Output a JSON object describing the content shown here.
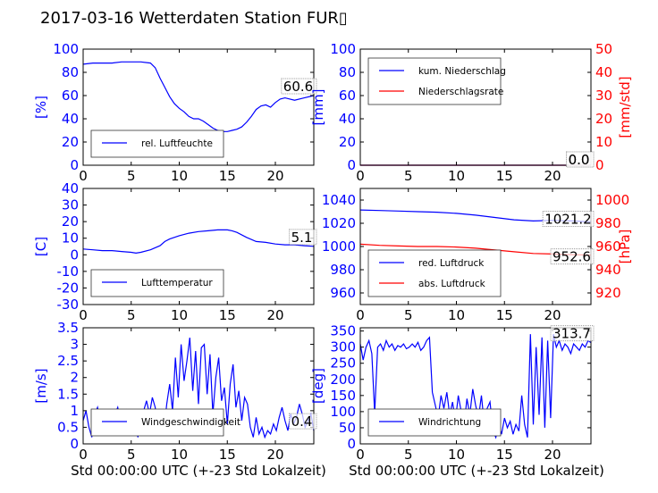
{
  "figure": {
    "title": "2017-03-16 Wetterdaten Station FUR",
    "title_glyph": "▯",
    "xlabel": "Std 00:00:00 UTC (+-23 Std Lokalzeit)"
  },
  "colors": {
    "primary": "#0000ff",
    "secondary": "#ff0000",
    "axis": "#000000"
  },
  "chart_data": [
    {
      "type": "line",
      "panel": "humidity",
      "ylabel": "[%]",
      "ylim": [
        0,
        100
      ],
      "yticks": [
        0,
        20,
        40,
        60,
        80,
        100
      ],
      "xlim": [
        0,
        24
      ],
      "xticks": [
        0,
        5,
        10,
        15,
        20
      ],
      "legend_position": "lower-left",
      "series": [
        {
          "name": "rel. Luftfeuchte",
          "color": "#0000ff",
          "x": [
            0,
            1,
            2,
            3,
            4,
            5,
            6,
            7,
            7.5,
            8,
            8.5,
            9,
            9.5,
            10,
            10.5,
            11,
            11.5,
            12,
            12.5,
            13,
            13.5,
            14,
            14.5,
            15,
            15.5,
            16,
            16.5,
            17,
            17.5,
            18,
            18.5,
            19,
            19.5,
            20,
            20.5,
            21,
            22,
            23,
            24
          ],
          "y": [
            87,
            88,
            88,
            88,
            89,
            89,
            89,
            88,
            84,
            75,
            67,
            59,
            53,
            49,
            46,
            42,
            40,
            40,
            38,
            35,
            32,
            30,
            29,
            29,
            30,
            31,
            33,
            37,
            42,
            48,
            51,
            52,
            50,
            54,
            57,
            58,
            56,
            58,
            60
          ]
        }
      ],
      "annotation": "60.6"
    },
    {
      "type": "line",
      "panel": "precipitation",
      "ylabel": "[mm]",
      "ylim": [
        0,
        100
      ],
      "yticks": [
        0,
        20,
        40,
        60,
        80,
        100
      ],
      "ylabel_right": "[mm/std]",
      "ylim_right": [
        0,
        50
      ],
      "yticks_right": [
        0,
        10,
        20,
        30,
        40,
        50
      ],
      "xlim": [
        0,
        24
      ],
      "xticks": [
        0,
        5,
        10,
        15,
        20
      ],
      "legend_position": "top-left",
      "series": [
        {
          "name": "kum. Niederschlag",
          "color": "#0000ff",
          "axis": "left",
          "x": [
            0,
            24
          ],
          "y": [
            0,
            0
          ]
        },
        {
          "name": "Niederschlagsrate",
          "color": "#ff0000",
          "axis": "right",
          "x": [
            0,
            24
          ],
          "y": [
            0,
            0
          ]
        }
      ],
      "annotation_left": "0.0",
      "annotation_right": "0.0"
    },
    {
      "type": "line",
      "panel": "temperature",
      "ylabel": "[C]",
      "ylim": [
        -30,
        40
      ],
      "yticks": [
        -30,
        -20,
        -10,
        0,
        10,
        20,
        30,
        40
      ],
      "xlim": [
        0,
        24
      ],
      "xticks": [
        0,
        5,
        10,
        15,
        20
      ],
      "legend_position": "lower-left",
      "series": [
        {
          "name": "Lufttemperatur",
          "color": "#0000ff",
          "x": [
            0,
            1,
            2,
            3,
            4,
            5,
            5.5,
            6,
            7,
            8,
            8.5,
            9,
            10,
            11,
            12,
            13,
            14,
            15,
            15.5,
            16,
            17,
            18,
            19,
            20,
            21,
            22,
            23,
            24
          ],
          "y": [
            3.5,
            3.0,
            2.5,
            2.5,
            2.0,
            1.5,
            1.0,
            1.5,
            3.0,
            5.5,
            8.0,
            9.5,
            11.5,
            13.0,
            14.0,
            14.5,
            15.0,
            15.0,
            14.5,
            13.5,
            10.5,
            8.0,
            7.5,
            6.5,
            6.0,
            6.0,
            5.5,
            5.1
          ]
        }
      ],
      "annotation": "5.1"
    },
    {
      "type": "line",
      "panel": "pressure",
      "ylim": [
        950,
        1050
      ],
      "yticks": [
        960,
        980,
        1000,
        1020,
        1040
      ],
      "ylabel_right": "[hPa]",
      "ylim_right": [
        910,
        1010
      ],
      "yticks_right": [
        920,
        940,
        960,
        980,
        1000
      ],
      "xlim": [
        0,
        24
      ],
      "xticks": [
        0,
        5,
        10,
        15,
        20
      ],
      "legend_position": "lower-left",
      "series": [
        {
          "name": "red. Luftdruck",
          "color": "#0000ff",
          "axis": "left",
          "x": [
            0,
            2,
            4,
            6,
            8,
            10,
            12,
            14,
            16,
            18,
            20,
            22,
            24
          ],
          "y": [
            1031.5,
            1031,
            1030.5,
            1030,
            1029.5,
            1028.5,
            1027,
            1025,
            1023,
            1022,
            1022.5,
            1022,
            1021.2
          ]
        },
        {
          "name": "abs. Luftdruck",
          "color": "#ff0000",
          "axis": "right",
          "x": [
            0,
            2,
            4,
            6,
            8,
            10,
            12,
            14,
            16,
            18,
            20,
            22,
            24
          ],
          "y": [
            962,
            961,
            960.5,
            960,
            960,
            959.5,
            958.5,
            957,
            955.5,
            954,
            953.5,
            953,
            952.6
          ]
        }
      ],
      "annotation_left": "1021.2",
      "annotation_right": "952.6"
    },
    {
      "type": "line",
      "panel": "windspeed",
      "ylabel": "[m/s]",
      "ylim": [
        0,
        3.5
      ],
      "yticks": [
        0.0,
        0.5,
        1.0,
        1.5,
        2.0,
        2.5,
        3.0,
        3.5
      ],
      "xlim": [
        0,
        24
      ],
      "xticks": [
        0,
        5,
        10,
        15,
        20
      ],
      "legend_position": "lower-left",
      "series": [
        {
          "name": "Windgeschwindigkeit",
          "color": "#0000ff",
          "x": [
            0,
            0.3,
            0.6,
            0.9,
            1.2,
            1.5,
            1.8,
            2.1,
            2.4,
            2.7,
            3,
            3.3,
            3.6,
            3.9,
            4.2,
            4.5,
            4.8,
            5.1,
            5.4,
            5.7,
            6,
            6.3,
            6.6,
            6.9,
            7.2,
            7.5,
            7.8,
            8.1,
            8.4,
            8.7,
            9,
            9.3,
            9.6,
            9.9,
            10.2,
            10.5,
            10.8,
            11.1,
            11.4,
            11.7,
            12,
            12.3,
            12.6,
            12.9,
            13.2,
            13.5,
            13.8,
            14.1,
            14.4,
            14.7,
            15,
            15.3,
            15.6,
            15.9,
            16.2,
            16.5,
            16.8,
            17.1,
            17.4,
            17.7,
            18,
            18.3,
            18.6,
            18.9,
            19.2,
            19.5,
            19.8,
            20.1,
            20.4,
            20.7,
            21,
            21.3,
            21.6,
            21.9,
            22.2,
            22.5,
            22.8,
            23.1,
            23.4,
            23.7,
            24
          ],
          "y": [
            0.7,
            1.0,
            0.5,
            0.2,
            0.9,
            1.1,
            0.6,
            0.3,
            0.8,
            1.0,
            0.5,
            0.9,
            1.1,
            0.6,
            0.3,
            1.0,
            0.8,
            0.9,
            0.6,
            0.2,
            0.8,
            1.0,
            1.3,
            0.9,
            1.4,
            1.1,
            0.5,
            0.9,
            0.4,
            1.2,
            1.8,
            1.0,
            2.6,
            1.4,
            3.0,
            1.9,
            2.5,
            3.2,
            1.6,
            2.8,
            1.2,
            2.9,
            3.0,
            1.5,
            2.7,
            0.9,
            2.0,
            2.6,
            1.3,
            1.7,
            0.6,
            1.8,
            2.4,
            1.1,
            1.6,
            0.7,
            1.4,
            1.2,
            0.5,
            0.2,
            0.8,
            0.3,
            0.5,
            0.2,
            0.4,
            0.3,
            0.6,
            0.4,
            0.8,
            1.1,
            0.7,
            0.4,
            0.9,
            0.6,
            0.8,
            1.2,
            0.9,
            0.5,
            0.7,
            0.9,
            0.4
          ]
        }
      ],
      "annotation": "0.4"
    },
    {
      "type": "line",
      "panel": "winddirection",
      "ylabel": "[deg]",
      "ylim": [
        0,
        360
      ],
      "yticks": [
        0,
        50,
        100,
        150,
        200,
        250,
        300,
        350
      ],
      "xlim": [
        0,
        24
      ],
      "xticks": [
        0,
        5,
        10,
        15,
        20
      ],
      "legend_position": "lower-left",
      "series": [
        {
          "name": "Windrichtung",
          "color": "#0000ff",
          "x": [
            0,
            0.3,
            0.6,
            0.9,
            1.2,
            1.5,
            1.8,
            2.1,
            2.4,
            2.7,
            3,
            3.3,
            3.6,
            3.9,
            4.2,
            4.5,
            4.8,
            5.1,
            5.4,
            5.7,
            6,
            6.3,
            6.6,
            6.9,
            7.2,
            7.5,
            7.8,
            8.1,
            8.4,
            8.7,
            9,
            9.3,
            9.6,
            9.9,
            10.2,
            10.5,
            10.8,
            11.1,
            11.4,
            11.7,
            12,
            12.3,
            12.6,
            12.9,
            13.2,
            13.5,
            13.8,
            14.1,
            14.4,
            14.7,
            15,
            15.3,
            15.6,
            15.9,
            16.2,
            16.5,
            16.8,
            17.1,
            17.4,
            17.7,
            18,
            18.3,
            18.6,
            18.9,
            19.2,
            19.5,
            19.8,
            20.1,
            20.4,
            20.7,
            21,
            21.3,
            21.6,
            21.9,
            22.2,
            22.5,
            22.8,
            23.1,
            23.4,
            23.7,
            24
          ],
          "y": [
            310,
            260,
            300,
            320,
            280,
            95,
            300,
            310,
            290,
            320,
            300,
            310,
            290,
            305,
            300,
            310,
            295,
            300,
            310,
            300,
            315,
            290,
            300,
            320,
            330,
            160,
            120,
            80,
            150,
            110,
            160,
            90,
            130,
            70,
            150,
            100,
            60,
            140,
            90,
            170,
            120,
            80,
            150,
            60,
            110,
            130,
            40,
            20,
            60,
            30,
            80,
            50,
            70,
            30,
            60,
            40,
            150,
            60,
            20,
            340,
            60,
            300,
            90,
            330,
            50,
            320,
            80,
            340,
            300,
            320,
            290,
            310,
            300,
            280,
            310,
            300,
            290,
            310,
            300,
            320,
            314
          ]
        }
      ],
      "annotation": "313.7"
    }
  ]
}
